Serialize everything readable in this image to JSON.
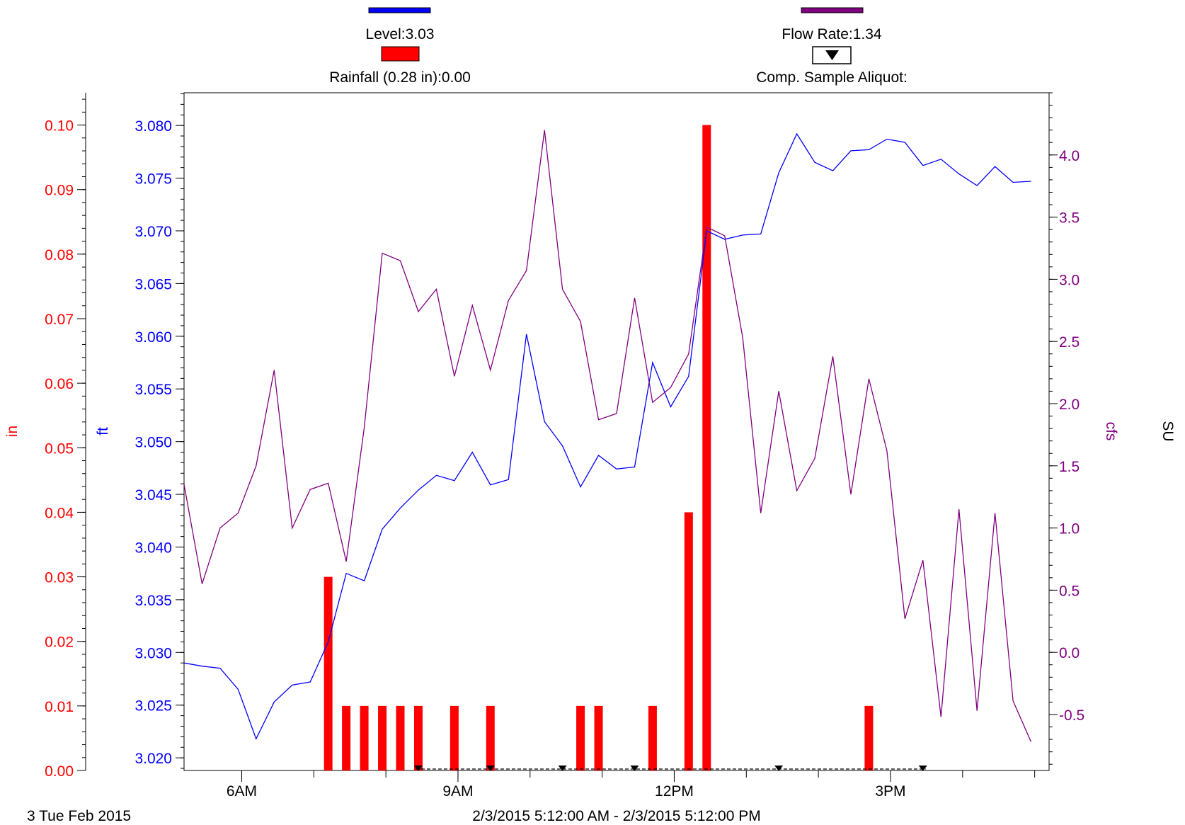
{
  "legend": {
    "level": {
      "text": "Level:3.03",
      "color": "#0000ff"
    },
    "flow": {
      "text": "Flow Rate:1.34",
      "color": "#800080"
    },
    "rain": {
      "text": "Rainfall (0.28 in):0.00",
      "color": "#ff0000"
    },
    "sample": {
      "text": "Comp. Sample Aliquot:",
      "icon": "down-triangle-icon"
    }
  },
  "footer": {
    "date": "3 Tue Feb 2015",
    "range": "2/3/2015 5:12:00 AM - 2/3/2015 5:12:00 PM"
  },
  "chart_data": {
    "type": "line",
    "x_range": [
      "2/3/2015 5:12:00 AM",
      "2/3/2015 5:12:00 PM"
    ],
    "x_ticks": [
      {
        "label": "6AM",
        "t": 6.0
      },
      {
        "label": "9AM",
        "t": 9.0
      },
      {
        "label": "12PM",
        "t": 12.0
      },
      {
        "label": "3PM",
        "t": 15.0
      }
    ],
    "xlim_hours": [
      5.2,
      17.2
    ],
    "axes": {
      "rain": {
        "label": "in",
        "color": "#ff0000",
        "ylim": [
          0,
          0.105
        ],
        "ticks": [
          "0.00",
          "0.01",
          "0.02",
          "0.03",
          "0.04",
          "0.05",
          "0.06",
          "0.07",
          "0.08",
          "0.09",
          "0.10"
        ]
      },
      "level": {
        "label": "ft",
        "color": "#0000ff",
        "ylim": [
          3.0188,
          3.0831
        ],
        "ticks": [
          "3.020",
          "3.025",
          "3.030",
          "3.035",
          "3.040",
          "3.045",
          "3.050",
          "3.055",
          "3.060",
          "3.065",
          "3.070",
          "3.075",
          "3.080"
        ]
      },
      "flow": {
        "label": "cfs",
        "color": "#800080",
        "ylim": [
          -0.95,
          4.5
        ],
        "ticks": [
          "-0.5",
          "0.0",
          "0.5",
          "1.0",
          "1.5",
          "2.0",
          "2.5",
          "3.0",
          "3.5",
          "4.0"
        ]
      },
      "su": {
        "label": "SU",
        "color": "#000000"
      }
    },
    "series": [
      {
        "name": "Level",
        "axis": "level",
        "color": "#0000ff",
        "points": [
          [
            5.2,
            3.029
          ],
          [
            5.45,
            3.0287
          ],
          [
            5.7,
            3.0285
          ],
          [
            5.95,
            3.0265
          ],
          [
            6.2,
            3.0218
          ],
          [
            6.45,
            3.0253
          ],
          [
            6.7,
            3.0269
          ],
          [
            6.95,
            3.0272
          ],
          [
            7.2,
            3.031
          ],
          [
            7.45,
            3.0375
          ],
          [
            7.7,
            3.0368
          ],
          [
            7.95,
            3.0417
          ],
          [
            8.2,
            3.0437
          ],
          [
            8.45,
            3.0454
          ],
          [
            8.7,
            3.0468
          ],
          [
            8.95,
            3.0463
          ],
          [
            9.2,
            3.049
          ],
          [
            9.45,
            3.0459
          ],
          [
            9.7,
            3.0464
          ],
          [
            9.95,
            3.0602
          ],
          [
            10.2,
            3.0519
          ],
          [
            10.45,
            3.0496
          ],
          [
            10.7,
            3.0457
          ],
          [
            10.95,
            3.0487
          ],
          [
            11.2,
            3.0474
          ],
          [
            11.45,
            3.0476
          ],
          [
            11.7,
            3.0575
          ],
          [
            11.95,
            3.0533
          ],
          [
            12.2,
            3.0562
          ],
          [
            12.45,
            3.07
          ],
          [
            12.7,
            3.0692
          ],
          [
            12.95,
            3.0696
          ],
          [
            13.2,
            3.0697
          ],
          [
            13.45,
            3.0755
          ],
          [
            13.7,
            3.0792
          ],
          [
            13.95,
            3.0765
          ],
          [
            14.2,
            3.0757
          ],
          [
            14.45,
            3.0776
          ],
          [
            14.7,
            3.0777
          ],
          [
            14.95,
            3.0787
          ],
          [
            15.2,
            3.0784
          ],
          [
            15.45,
            3.0762
          ],
          [
            15.7,
            3.0768
          ],
          [
            15.95,
            3.0754
          ],
          [
            16.2,
            3.0743
          ],
          [
            16.45,
            3.0761
          ],
          [
            16.7,
            3.0746
          ],
          [
            16.95,
            3.0747
          ]
        ]
      },
      {
        "name": "Flow Rate",
        "axis": "flow",
        "color": "#800080",
        "points": [
          [
            5.2,
            1.35
          ],
          [
            5.45,
            0.55
          ],
          [
            5.7,
            1.0
          ],
          [
            5.95,
            1.12
          ],
          [
            6.2,
            1.5
          ],
          [
            6.45,
            2.27
          ],
          [
            6.7,
            1.0
          ],
          [
            6.95,
            1.31
          ],
          [
            7.2,
            1.36
          ],
          [
            7.45,
            0.73
          ],
          [
            7.7,
            1.81
          ],
          [
            7.95,
            3.21
          ],
          [
            8.2,
            3.15
          ],
          [
            8.45,
            2.74
          ],
          [
            8.7,
            2.92
          ],
          [
            8.95,
            2.22
          ],
          [
            9.2,
            2.79
          ],
          [
            9.45,
            2.27
          ],
          [
            9.7,
            2.83
          ],
          [
            9.95,
            3.07
          ],
          [
            10.2,
            4.2
          ],
          [
            10.45,
            2.92
          ],
          [
            10.7,
            2.66
          ],
          [
            10.95,
            1.87
          ],
          [
            11.2,
            1.92
          ],
          [
            11.45,
            2.85
          ],
          [
            11.7,
            2.01
          ],
          [
            11.95,
            2.13
          ],
          [
            12.2,
            2.4
          ],
          [
            12.45,
            3.42
          ],
          [
            12.7,
            3.35
          ],
          [
            12.95,
            2.53
          ],
          [
            13.2,
            1.12
          ],
          [
            13.45,
            2.1
          ],
          [
            13.7,
            1.3
          ],
          [
            13.95,
            1.56
          ],
          [
            14.2,
            2.38
          ],
          [
            14.45,
            1.27
          ],
          [
            14.7,
            2.2
          ],
          [
            14.95,
            1.62
          ],
          [
            15.2,
            0.27
          ],
          [
            15.45,
            0.74
          ],
          [
            15.7,
            -0.52
          ],
          [
            15.95,
            1.15
          ],
          [
            16.2,
            -0.47
          ],
          [
            16.45,
            1.12
          ],
          [
            16.7,
            -0.39
          ],
          [
            16.95,
            -0.72
          ]
        ]
      },
      {
        "name": "Rainfall",
        "axis": "rain",
        "type": "bar",
        "color": "#ff0000",
        "points": [
          [
            7.2,
            0.03
          ],
          [
            7.45,
            0.01
          ],
          [
            7.7,
            0.01
          ],
          [
            7.95,
            0.01
          ],
          [
            8.2,
            0.01
          ],
          [
            8.45,
            0.01
          ],
          [
            8.95,
            0.01
          ],
          [
            9.45,
            0.01
          ],
          [
            10.7,
            0.01
          ],
          [
            10.95,
            0.01
          ],
          [
            11.7,
            0.01
          ],
          [
            12.2,
            0.04
          ],
          [
            12.45,
            0.1
          ],
          [
            14.7,
            0.01
          ]
        ]
      }
    ],
    "sample_markers": [
      8.45,
      9.45,
      10.45,
      11.45,
      13.45,
      15.45
    ],
    "grid": false,
    "legend_position": "top"
  }
}
